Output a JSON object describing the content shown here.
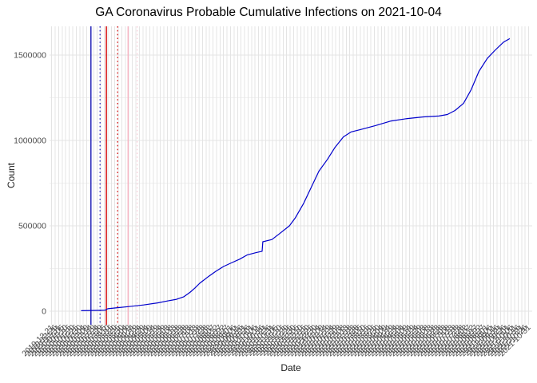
{
  "chart_data": {
    "type": "line",
    "title": "GA Coronavirus Probable Cumulative Infections on 2021-10-04",
    "xlabel": "Date",
    "ylabel": "Count",
    "legend": "none",
    "background": "#FFFFFF",
    "grid": {
      "show": true,
      "major_color": "#E4E4E4",
      "minor_color": "#F0F0F0"
    },
    "text_colors": {
      "title": "#000000",
      "axis_title": "#1A1A1A",
      "tick_labels": "#4D4D4D"
    },
    "x_domain": [
      "2019-12-18",
      "2021-11-05"
    ],
    "y_domain": [
      -79000,
      1668000
    ],
    "y_major_ticks": [
      {
        "value": 0,
        "label": "0"
      },
      {
        "value": 500000,
        "label": "500000"
      },
      {
        "value": 1000000,
        "label": "1000000"
      },
      {
        "value": 1500000,
        "label": "1500000"
      }
    ],
    "y_minor_ticks": [
      250000,
      750000,
      1250000
    ],
    "x_ticks": [
      "2019-12-21",
      "2019-12-26",
      "2019-12-31",
      "2020-01-05",
      "2020-01-10",
      "2020-01-15",
      "2020-01-20",
      "2020-01-25",
      "2020-01-30",
      "2020-02-04",
      "2020-02-09",
      "2020-02-14",
      "2020-02-19",
      "2020-02-24",
      "2020-02-29",
      "2020-03-05",
      "2020-03-10",
      "2020-03-15",
      "2020-03-20",
      "2020-03-25",
      "2020-03-30",
      "2020-04-04",
      "2020-04-09",
      "2020-04-14",
      "2020-04-19",
      "2020-04-24",
      "2020-04-29",
      "2020-05-04",
      "2020-05-09",
      "2020-05-14",
      "2020-05-19",
      "2020-05-24",
      "2020-05-29",
      "2020-06-03",
      "2020-06-08",
      "2020-06-13",
      "2020-06-18",
      "2020-06-23",
      "2020-06-28",
      "2020-07-03",
      "2020-07-08",
      "2020-07-13",
      "2020-07-18",
      "2020-07-23",
      "2020-07-28",
      "2020-08-02",
      "2020-08-07",
      "2020-08-12",
      "2020-08-17",
      "2020-08-22",
      "2020-08-27",
      "2020-09-01",
      "2020-09-06",
      "2020-09-11",
      "2020-09-16",
      "2020-09-21",
      "2020-09-26",
      "2020-10-01",
      "2020-10-06",
      "2020-10-11",
      "2020-10-16",
      "2020-10-21",
      "2020-10-26",
      "2020-10-31",
      "2020-11-05",
      "2020-11-10",
      "2020-11-15",
      "2020-11-20",
      "2020-11-25",
      "2020-11-30",
      "2020-12-05",
      "2020-12-10",
      "2020-12-15",
      "2020-12-20",
      "2020-12-25",
      "2020-12-30",
      "2021-01-04",
      "2021-01-09",
      "2021-01-14",
      "2021-01-19",
      "2021-01-24",
      "2021-01-29",
      "2021-02-03",
      "2021-02-08",
      "2021-02-13",
      "2021-02-18",
      "2021-02-23",
      "2021-02-28",
      "2021-03-05",
      "2021-03-10",
      "2021-03-15",
      "2021-03-20",
      "2021-03-25",
      "2021-03-30",
      "2021-04-04",
      "2021-04-09",
      "2021-04-14",
      "2021-04-19",
      "2021-04-24",
      "2021-04-29",
      "2021-05-04",
      "2021-05-09",
      "2021-05-14",
      "2021-05-19",
      "2021-05-24",
      "2021-05-29",
      "2021-06-03",
      "2021-06-08",
      "2021-06-13",
      "2021-06-18",
      "2021-06-23",
      "2021-06-28",
      "2021-07-03",
      "2021-07-08",
      "2021-07-13",
      "2021-07-18",
      "2021-07-23",
      "2021-07-28",
      "2021-08-02",
      "2021-08-07",
      "2021-08-12",
      "2021-08-17",
      "2021-08-22",
      "2021-08-27",
      "2021-09-01",
      "2021-09-06",
      "2021-09-11",
      "2021-09-16",
      "2021-09-21",
      "2021-09-26",
      "2021-10-01",
      "2021-10-06",
      "2021-10-11",
      "2021-10-16",
      "2021-10-21",
      "2021-10-26",
      "2021-10-31"
    ],
    "vlines": [
      {
        "id": "blue-solid",
        "date": "2020-02-15",
        "color": "#1A1AB8",
        "style": "solid"
      },
      {
        "id": "blue-dotted",
        "date": "2020-02-28",
        "color": "#1A1AB8",
        "style": "dotted"
      },
      {
        "id": "red-solid",
        "date": "2020-03-08",
        "color": "#D40000",
        "style": "solid"
      },
      {
        "id": "red-dotted",
        "date": "2020-03-24",
        "color": "#D40000",
        "style": "dotted"
      },
      {
        "id": "pink-solid",
        "date": "2020-04-08",
        "color": "#F7B3C2",
        "style": "solid"
      },
      {
        "id": "pink-dotted",
        "date": "2020-04-21",
        "color": "#F9CAD6",
        "style": "dotted"
      }
    ],
    "series": [
      {
        "name": "probable-cumulative-infections",
        "color": "#0000CC",
        "width": 1.2,
        "points": [
          [
            "2020-02-01",
            3000
          ],
          [
            "2020-03-06",
            6000
          ],
          [
            "2020-03-10",
            15000
          ],
          [
            "2020-03-24",
            21000
          ],
          [
            "2020-04-08",
            27000
          ],
          [
            "2020-04-30",
            37000
          ],
          [
            "2020-05-20",
            49000
          ],
          [
            "2020-06-03",
            60000
          ],
          [
            "2020-06-16",
            70000
          ],
          [
            "2020-06-26",
            84000
          ],
          [
            "2020-07-05",
            110000
          ],
          [
            "2020-07-12",
            135000
          ],
          [
            "2020-07-19",
            164000
          ],
          [
            "2020-08-01",
            205000
          ],
          [
            "2020-08-11",
            234000
          ],
          [
            "2020-08-22",
            262000
          ],
          [
            "2020-09-02",
            283000
          ],
          [
            "2020-09-14",
            305000
          ],
          [
            "2020-09-25",
            330000
          ],
          [
            "2020-10-08",
            344000
          ],
          [
            "2020-10-16",
            351000
          ],
          [
            "2020-10-17",
            407000
          ],
          [
            "2020-10-30",
            420000
          ],
          [
            "2020-11-10",
            455000
          ],
          [
            "2020-11-24",
            500000
          ],
          [
            "2020-12-02",
            545000
          ],
          [
            "2020-12-14",
            630000
          ],
          [
            "2020-12-25",
            726000
          ],
          [
            "2021-01-05",
            820000
          ],
          [
            "2021-01-17",
            889000
          ],
          [
            "2021-01-28",
            960000
          ],
          [
            "2021-02-09",
            1021000
          ],
          [
            "2021-02-20",
            1050000
          ],
          [
            "2021-03-04",
            1062000
          ],
          [
            "2021-03-26",
            1086000
          ],
          [
            "2021-04-18",
            1114000
          ],
          [
            "2021-05-11",
            1128000
          ],
          [
            "2021-06-03",
            1138000
          ],
          [
            "2021-06-25",
            1143000
          ],
          [
            "2021-07-07",
            1152000
          ],
          [
            "2021-07-18",
            1175000
          ],
          [
            "2021-07-30",
            1217000
          ],
          [
            "2021-08-10",
            1297000
          ],
          [
            "2021-08-21",
            1404000
          ],
          [
            "2021-09-02",
            1480000
          ],
          [
            "2021-09-13",
            1528000
          ],
          [
            "2021-09-25",
            1575000
          ],
          [
            "2021-10-04",
            1596000
          ]
        ]
      }
    ]
  }
}
